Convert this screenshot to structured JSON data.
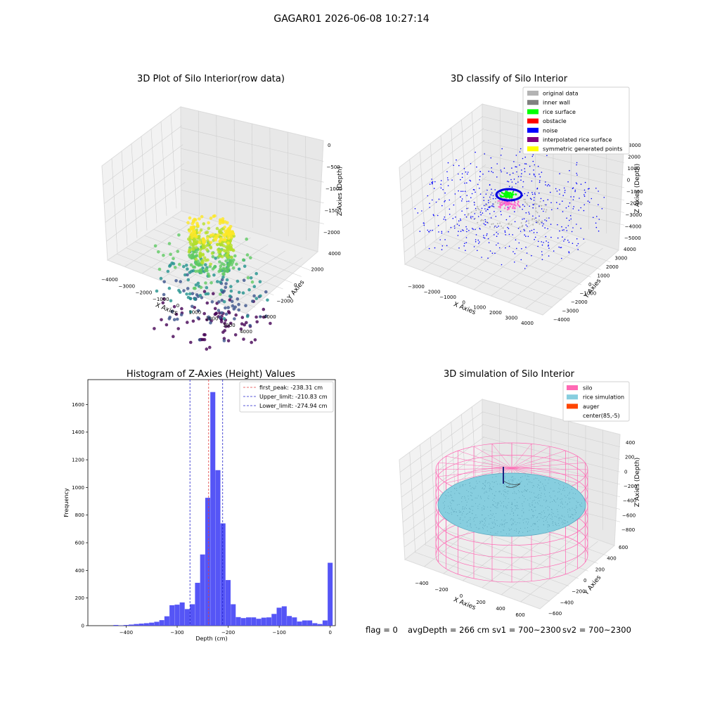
{
  "figure": {
    "suptitle": "GAGAR01 2026-06-08 10:27:14",
    "footer": {
      "flag": "flag = 0",
      "avg_depth": "avgDepth = 266 cm",
      "sv1": "sv1 = 700~2300",
      "sv2": "sv2 = 700~2300"
    }
  },
  "colors": {
    "pane_left": "#f2f2f2",
    "pane_right": "#e6e6e6",
    "pane_floor": "#ebebeb",
    "grid": "#cfcfcf",
    "hist_bar": "#4c4cf5",
    "peak_line": "#e04040",
    "limit_line": "#2222cc",
    "silo": "#ff69b4",
    "rice": "#87cedf",
    "auger": "#ff4500"
  },
  "chart_data": [
    {
      "type": "scatter",
      "projection": "3d",
      "title": "3D Plot of Silo Interior(row data)",
      "xlabel": "X Axies",
      "ylabel": "Y Axies",
      "zlabel": "Z Axies (Depth)",
      "x_ticks": [
        "−4000",
        "−3000",
        "−2000",
        "−1000",
        "0",
        "1000",
        "2000",
        "3000",
        "4000"
      ],
      "y_ticks": [
        "−4000",
        "−2000",
        "0",
        "2000",
        "4000"
      ],
      "z_ticks": [
        "0",
        "−500",
        "−1000",
        "−1500",
        "−2000"
      ],
      "xlim": [
        -4000,
        4000
      ],
      "ylim": [
        -4000,
        4000
      ],
      "zlim": [
        -2300,
        0
      ],
      "colormap": "viridis",
      "description_of_points": "ring of dense points near top (z≈0 to −1000) and sparse points toward floor"
    },
    {
      "type": "scatter",
      "projection": "3d",
      "title": "3D classify of Silo Interior",
      "xlabel": "X Axies",
      "ylabel": "Y Axies",
      "zlabel": "Z Axies (Depth)",
      "x_ticks": [
        "−3000",
        "−2000",
        "−1000",
        "0",
        "1000",
        "2000",
        "3000",
        "4000"
      ],
      "y_ticks": [
        "−4000",
        "−3000",
        "−2000",
        "−1000",
        "0",
        "1000",
        "2000",
        "3000",
        "4000"
      ],
      "z_ticks": [
        "2000",
        "1000",
        "0",
        "−1000",
        "−2000",
        "−3000",
        "−4000",
        "−5000"
      ],
      "zlim_extra_tick": "3000",
      "xlim": [
        -3500,
        4000
      ],
      "ylim": [
        -4000,
        4000
      ],
      "zlim": [
        -5000,
        3000
      ],
      "legend": [
        {
          "label": "original data",
          "color": "#b3b3b3"
        },
        {
          "label": "inner wall",
          "color": "#808080"
        },
        {
          "label": "rice surface",
          "color": "#00ff00"
        },
        {
          "label": "obstacle",
          "color": "#ff0000"
        },
        {
          "label": "noise",
          "color": "#0000ff"
        },
        {
          "label": "interpolated rice surface",
          "color": "#800080"
        },
        {
          "label": "symmetric generated points",
          "color": "#ffff00"
        }
      ],
      "legend_position": "top-right"
    },
    {
      "type": "bar",
      "title": "Histogram of Z-Axies (Height) Values",
      "xlabel": "Depth (cm)",
      "ylabel": "Frequency",
      "xlim": [
        -475,
        10
      ],
      "ylim": [
        0,
        1780
      ],
      "x_ticks": [
        -400,
        -300,
        -200,
        -100,
        0
      ],
      "x_tick_labels": [
        "−400",
        "−300",
        "−200",
        "−100",
        "0"
      ],
      "y_ticks": [
        0,
        200,
        400,
        600,
        800,
        1000,
        1200,
        1400,
        1600
      ],
      "bin_width": 10,
      "bins": [
        [
          -420,
          5
        ],
        [
          -410,
          2
        ],
        [
          -400,
          5
        ],
        [
          -390,
          8
        ],
        [
          -380,
          12
        ],
        [
          -370,
          15
        ],
        [
          -360,
          18
        ],
        [
          -350,
          22
        ],
        [
          -340,
          28
        ],
        [
          -330,
          40
        ],
        [
          -320,
          68
        ],
        [
          -310,
          148
        ],
        [
          -300,
          152
        ],
        [
          -290,
          168
        ],
        [
          -280,
          120
        ],
        [
          -270,
          155
        ],
        [
          -260,
          310
        ],
        [
          -250,
          515
        ],
        [
          -240,
          925
        ],
        [
          -230,
          1690
        ],
        [
          -220,
          1125
        ],
        [
          -210,
          740
        ],
        [
          -200,
          330
        ],
        [
          -190,
          155
        ],
        [
          -180,
          62
        ],
        [
          -170,
          55
        ],
        [
          -160,
          60
        ],
        [
          -150,
          60
        ],
        [
          -140,
          50
        ],
        [
          -130,
          58
        ],
        [
          -120,
          60
        ],
        [
          -110,
          85
        ],
        [
          -100,
          130
        ],
        [
          -90,
          140
        ],
        [
          -80,
          70
        ],
        [
          -70,
          60
        ],
        [
          -60,
          30
        ],
        [
          -50,
          38
        ],
        [
          -40,
          38
        ],
        [
          -30,
          18
        ],
        [
          -20,
          12
        ],
        [
          -10,
          38
        ],
        [
          0,
          455
        ]
      ],
      "vlines": [
        {
          "x": -238.31,
          "label": "first_peak: -238.31 cm",
          "color": "#e04040"
        },
        {
          "x": -210.83,
          "label": "Upper_limit: -210.83 cm",
          "color": "#2222cc"
        },
        {
          "x": -274.94,
          "label": "Lower_limit: -274.94 cm",
          "color": "#2222cc"
        }
      ],
      "legend_position": "top-right"
    },
    {
      "type": "wireframe",
      "projection": "3d",
      "title": "3D simulation of Silo Interior",
      "xlabel": "X Axies",
      "ylabel": "Y Axies",
      "zlabel": "Z Axies (Depth)",
      "x_ticks": [
        "−400",
        "−200",
        "0",
        "200",
        "400",
        "600"
      ],
      "y_ticks": [
        "−600",
        "−400",
        "−200",
        "0",
        "200",
        "400",
        "600"
      ],
      "z_ticks": [
        "400",
        "200",
        "0",
        "−200",
        "−400",
        "−600",
        "−800"
      ],
      "xlim": [
        -500,
        700
      ],
      "ylim": [
        -700,
        700
      ],
      "zlim": [
        -900,
        450
      ],
      "legend": [
        {
          "label": "silo",
          "color": "#ff69b4"
        },
        {
          "label": "rice simulation",
          "color": "#87cedf"
        },
        {
          "label": "auger",
          "color": "#ff4500"
        },
        {
          "label": "center(85,-5)",
          "color": ""
        }
      ],
      "legend_position": "top-right"
    }
  ]
}
